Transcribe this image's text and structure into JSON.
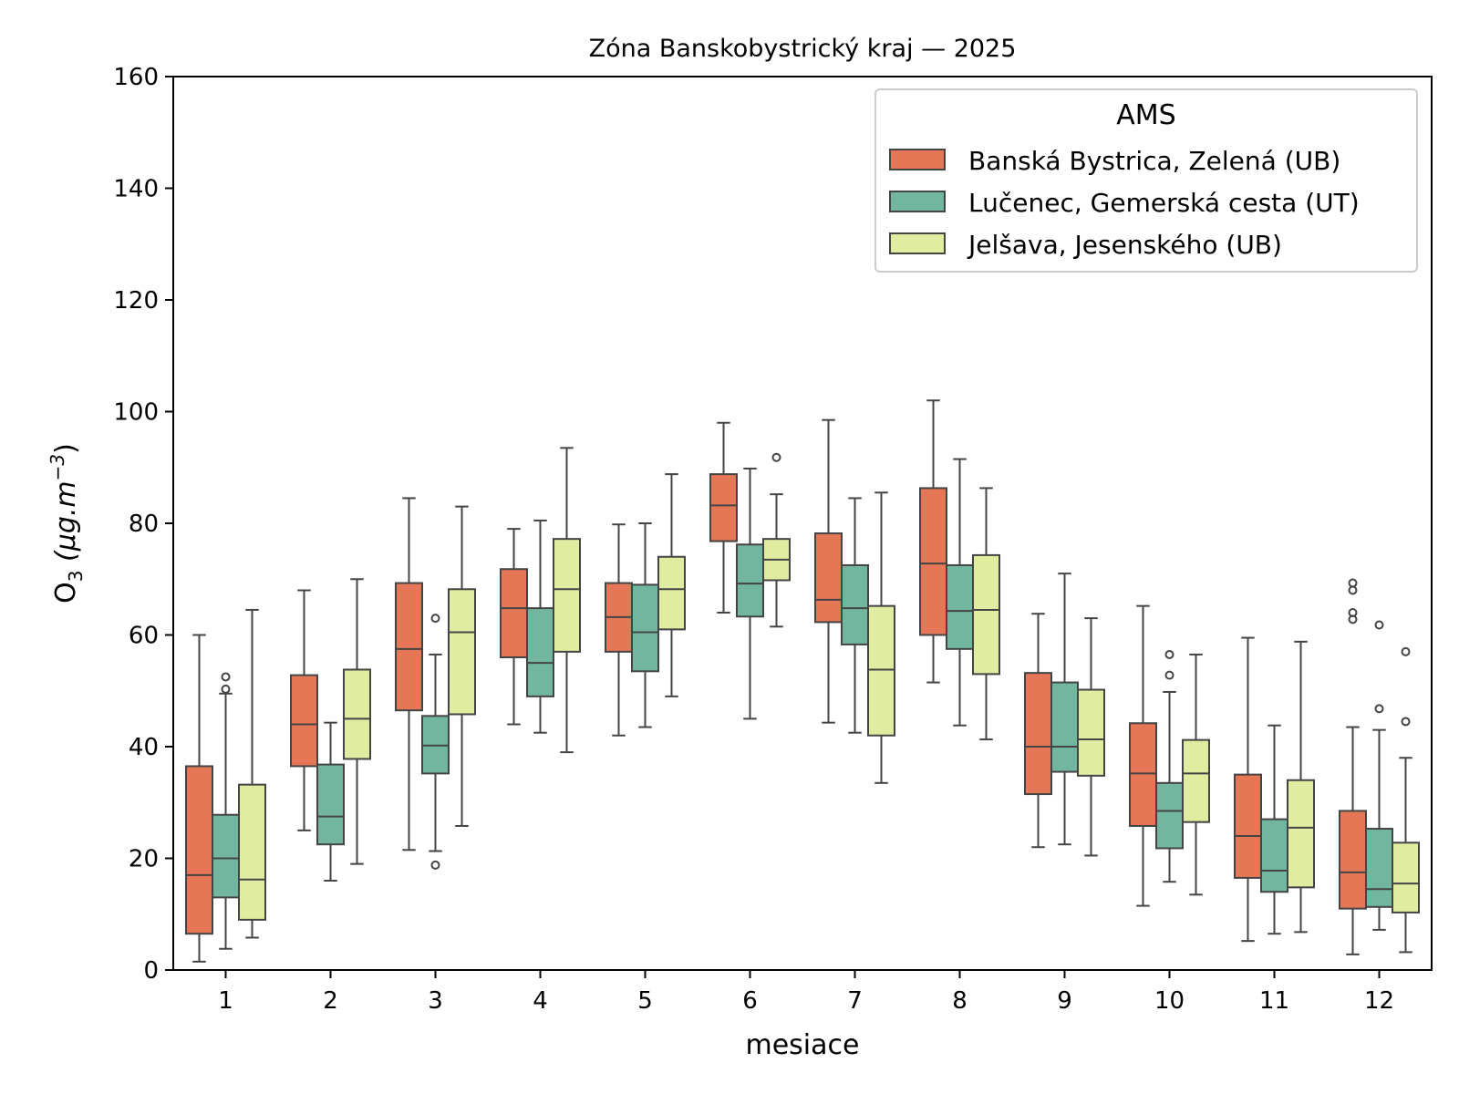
{
  "chart_data": {
    "type": "boxplot",
    "title": "Zóna Banskobystrický kraj —  2025",
    "xlabel": "mesiace",
    "ylabel_main": "O",
    "ylabel_sub": "3",
    "ylabel_unit": "(μg.m",
    "ylabel_sup": "−3",
    "ylabel_close": ")",
    "ylim": [
      0,
      160
    ],
    "yticks": [
      "0",
      "20",
      "40",
      "60",
      "80",
      "100",
      "120",
      "140",
      "160"
    ],
    "categories": [
      "1",
      "2",
      "3",
      "4",
      "5",
      "6",
      "7",
      "8",
      "9",
      "10",
      "11",
      "12"
    ],
    "legend": {
      "title": "AMS",
      "position": "top-right"
    },
    "series": [
      {
        "name": "Banská Bystrica, Zelená (UB)",
        "color": "#e57656",
        "boxes": [
          {
            "whislo": 1.5,
            "q1": 6.5,
            "med": 17,
            "q3": 36.5,
            "whishi": 60,
            "fliers": []
          },
          {
            "whislo": 25,
            "q1": 36.5,
            "med": 44,
            "q3": 52.8,
            "whishi": 68,
            "fliers": []
          },
          {
            "whislo": 21.5,
            "q1": 46.5,
            "med": 57.5,
            "q3": 69.3,
            "whishi": 84.5,
            "fliers": []
          },
          {
            "whislo": 44,
            "q1": 56,
            "med": 64.8,
            "q3": 71.8,
            "whishi": 79,
            "fliers": []
          },
          {
            "whislo": 42,
            "q1": 57,
            "med": 63.2,
            "q3": 69.3,
            "whishi": 79.8,
            "fliers": []
          },
          {
            "whislo": 64,
            "q1": 76.8,
            "med": 83.2,
            "q3": 88.8,
            "whishi": 98,
            "fliers": []
          },
          {
            "whislo": 44.3,
            "q1": 62.3,
            "med": 66.3,
            "q3": 78.2,
            "whishi": 98.5,
            "fliers": []
          },
          {
            "whislo": 51.5,
            "q1": 60,
            "med": 72.8,
            "q3": 86.3,
            "whishi": 102,
            "fliers": []
          },
          {
            "whislo": 22,
            "q1": 31.5,
            "med": 40,
            "q3": 53.2,
            "whishi": 63.8,
            "fliers": []
          },
          {
            "whislo": 11.5,
            "q1": 25.8,
            "med": 35.2,
            "q3": 44.2,
            "whishi": 65.2,
            "fliers": []
          },
          {
            "whislo": 5.2,
            "q1": 16.5,
            "med": 24,
            "q3": 35,
            "whishi": 59.5,
            "fliers": []
          },
          {
            "whislo": 2.8,
            "q1": 11,
            "med": 17.5,
            "q3": 28.5,
            "whishi": 43.5,
            "fliers": [
              62.8,
              64,
              68,
              69.3
            ]
          }
        ]
      },
      {
        "name": "Lučenec, Gemerská cesta (UT)",
        "color": "#72b6a0",
        "boxes": [
          {
            "whislo": 3.8,
            "q1": 13,
            "med": 20,
            "q3": 27.8,
            "whishi": 49.5,
            "fliers": [
              50.3,
              52.5
            ]
          },
          {
            "whislo": 16,
            "q1": 22.5,
            "med": 27.5,
            "q3": 36.8,
            "whishi": 44.3,
            "fliers": []
          },
          {
            "whislo": 21.3,
            "q1": 35.2,
            "med": 40.2,
            "q3": 45.5,
            "whishi": 56.5,
            "fliers": [
              18.8,
              63
            ]
          },
          {
            "whislo": 42.5,
            "q1": 49,
            "med": 55,
            "q3": 64.8,
            "whishi": 80.5,
            "fliers": []
          },
          {
            "whislo": 43.5,
            "q1": 53.5,
            "med": 60.5,
            "q3": 69,
            "whishi": 80,
            "fliers": []
          },
          {
            "whislo": 45,
            "q1": 63.3,
            "med": 69.2,
            "q3": 76.2,
            "whishi": 89.8,
            "fliers": []
          },
          {
            "whislo": 42.5,
            "q1": 58.3,
            "med": 64.8,
            "q3": 72.5,
            "whishi": 84.5,
            "fliers": []
          },
          {
            "whislo": 43.8,
            "q1": 57.5,
            "med": 64.3,
            "q3": 72.5,
            "whishi": 91.5,
            "fliers": []
          },
          {
            "whislo": 22.5,
            "q1": 35.5,
            "med": 40,
            "q3": 51.5,
            "whishi": 71,
            "fliers": []
          },
          {
            "whislo": 15.8,
            "q1": 21.8,
            "med": 28.5,
            "q3": 33.5,
            "whishi": 49.8,
            "fliers": [
              52.8,
              56.5
            ]
          },
          {
            "whislo": 6.5,
            "q1": 14,
            "med": 17.8,
            "q3": 27,
            "whishi": 43.8,
            "fliers": []
          },
          {
            "whislo": 7.2,
            "q1": 11.3,
            "med": 14.5,
            "q3": 25.3,
            "whishi": 43,
            "fliers": [
              46.8,
              61.8
            ]
          }
        ]
      },
      {
        "name": "Jelšava, Jesenského (UB)",
        "color": "#e0eca0",
        "boxes": [
          {
            "whislo": 5.8,
            "q1": 9,
            "med": 16.2,
            "q3": 33.2,
            "whishi": 64.5,
            "fliers": []
          },
          {
            "whislo": 19,
            "q1": 37.8,
            "med": 45,
            "q3": 53.8,
            "whishi": 70,
            "fliers": []
          },
          {
            "whislo": 25.8,
            "q1": 45.8,
            "med": 60.5,
            "q3": 68.2,
            "whishi": 83,
            "fliers": []
          },
          {
            "whislo": 39,
            "q1": 57,
            "med": 68.2,
            "q3": 77.2,
            "whishi": 93.5,
            "fliers": []
          },
          {
            "whislo": 49,
            "q1": 61,
            "med": 68.2,
            "q3": 74,
            "whishi": 88.8,
            "fliers": []
          },
          {
            "whislo": 61.5,
            "q1": 69.8,
            "med": 73.5,
            "q3": 77.2,
            "whishi": 85.2,
            "fliers": [
              91.8
            ]
          },
          {
            "whislo": 33.5,
            "q1": 42,
            "med": 53.8,
            "q3": 65.2,
            "whishi": 85.5,
            "fliers": []
          },
          {
            "whislo": 41.3,
            "q1": 53,
            "med": 64.5,
            "q3": 74.3,
            "whishi": 86.3,
            "fliers": []
          },
          {
            "whislo": 20.5,
            "q1": 34.8,
            "med": 41.3,
            "q3": 50.2,
            "whishi": 63,
            "fliers": []
          },
          {
            "whislo": 13.5,
            "q1": 26.5,
            "med": 35.2,
            "q3": 41.2,
            "whishi": 56.5,
            "fliers": []
          },
          {
            "whislo": 6.8,
            "q1": 14.8,
            "med": 25.5,
            "q3": 34,
            "whishi": 58.8,
            "fliers": []
          },
          {
            "whislo": 3.2,
            "q1": 10.3,
            "med": 15.5,
            "q3": 22.8,
            "whishi": 38,
            "fliers": [
              44.5,
              57
            ]
          }
        ]
      }
    ]
  }
}
